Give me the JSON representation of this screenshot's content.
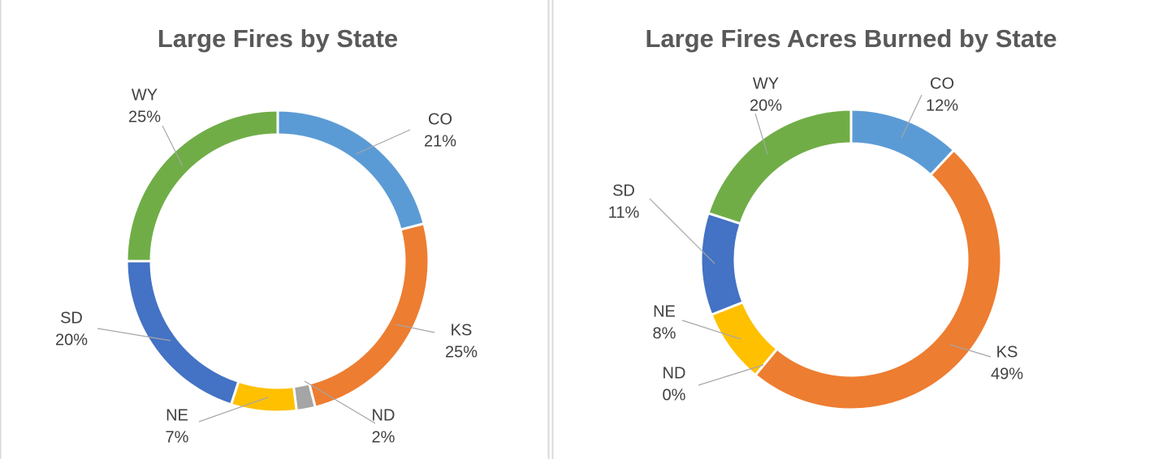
{
  "chart_data": [
    {
      "type": "pie",
      "donut": true,
      "title": "Large Fires by State",
      "categories": [
        "CO",
        "KS",
        "ND",
        "NE",
        "SD",
        "WY"
      ],
      "values": [
        21,
        25,
        2,
        7,
        20,
        25
      ],
      "value_labels": [
        "21%",
        "25%",
        "2%",
        "7%",
        "20%",
        "25%"
      ],
      "colors": [
        "#5b9bd5",
        "#ed7d31",
        "#a5a5a5",
        "#ffc000",
        "#4472c4",
        "#70ad47"
      ]
    },
    {
      "type": "pie",
      "donut": true,
      "title": "Large Fires Acres Burned by State",
      "categories": [
        "CO",
        "KS",
        "ND",
        "NE",
        "SD",
        "WY"
      ],
      "values": [
        12,
        49,
        0,
        8,
        11,
        20
      ],
      "value_labels": [
        "12%",
        "49%",
        "0%",
        "8%",
        "11%",
        "20%"
      ],
      "colors": [
        "#5b9bd5",
        "#ed7d31",
        "#a5a5a5",
        "#ffc000",
        "#4472c4",
        "#70ad47"
      ]
    }
  ]
}
